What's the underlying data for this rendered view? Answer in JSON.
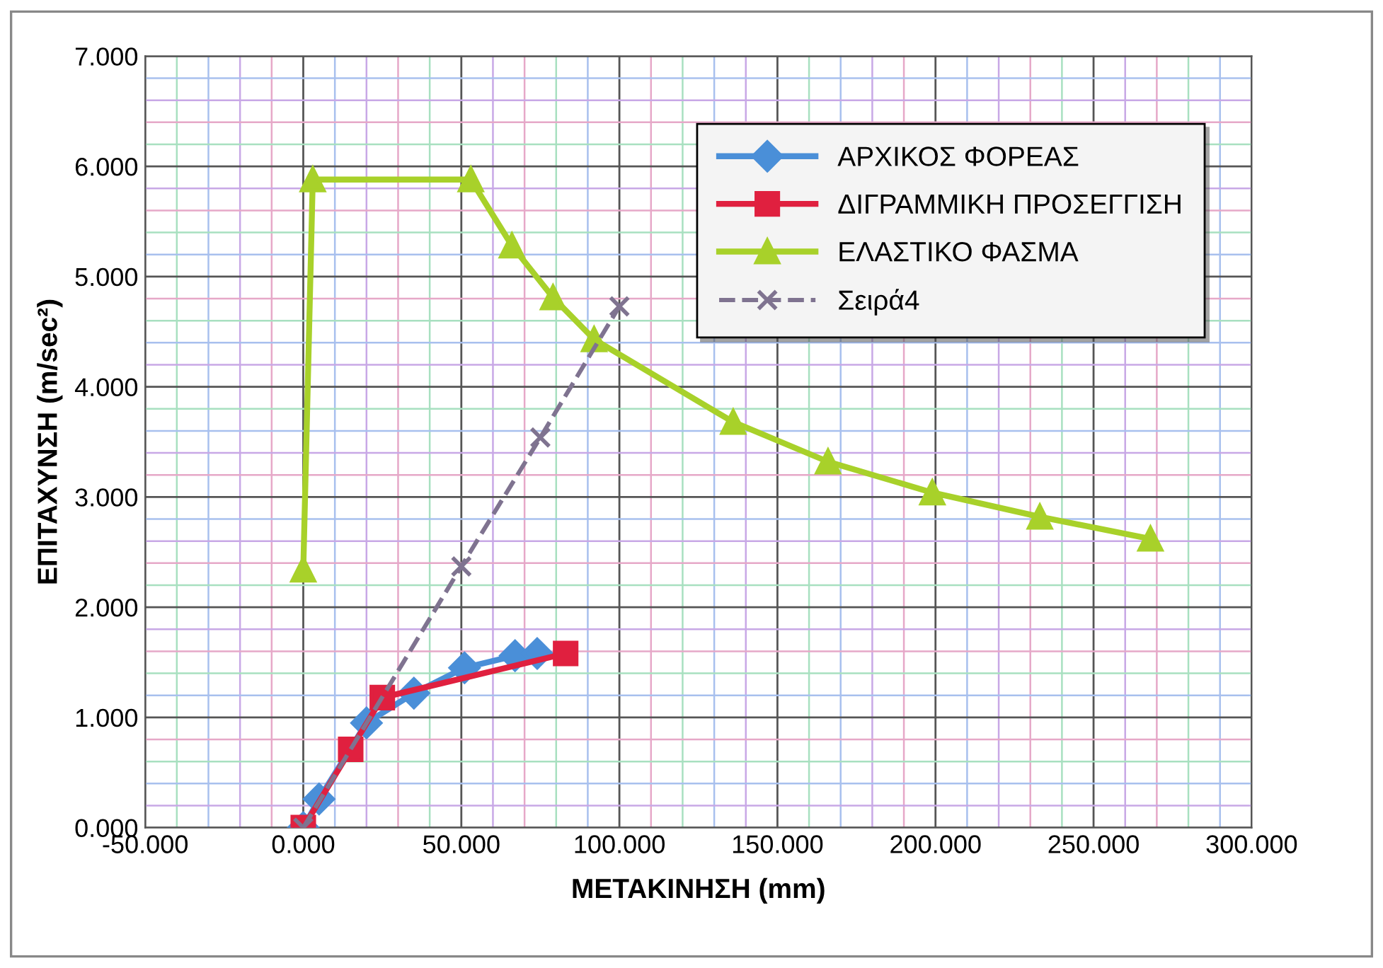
{
  "chart_data": {
    "type": "line",
    "xlabel": "ΜΕΤΑΚΙΝΗΣΗ (mm)",
    "ylabel": "ΕΠΙΤΑΧΥΝΣΗ (m/sec²)",
    "xlim": [
      -50,
      300
    ],
    "ylim": [
      0,
      7
    ],
    "xticks": [
      {
        "value": -50,
        "label": "-50.000"
      },
      {
        "value": -40,
        "label": null
      },
      {
        "value": -30,
        "label": null
      },
      {
        "value": -20,
        "label": null
      },
      {
        "value": -10,
        "label": null
      },
      {
        "value": 0,
        "label": "0.000"
      },
      {
        "value": 10,
        "label": null
      },
      {
        "value": 20,
        "label": null
      },
      {
        "value": 30,
        "label": null
      },
      {
        "value": 40,
        "label": null
      },
      {
        "value": 50,
        "label": "50.000"
      },
      {
        "value": 60,
        "label": null
      },
      {
        "value": 70,
        "label": null
      },
      {
        "value": 80,
        "label": null
      },
      {
        "value": 90,
        "label": null
      },
      {
        "value": 100,
        "label": "100.000"
      },
      {
        "value": 110,
        "label": null
      },
      {
        "value": 120,
        "label": null
      },
      {
        "value": 130,
        "label": null
      },
      {
        "value": 140,
        "label": null
      },
      {
        "value": 150,
        "label": "150.000"
      },
      {
        "value": 160,
        "label": null
      },
      {
        "value": 170,
        "label": null
      },
      {
        "value": 180,
        "label": null
      },
      {
        "value": 190,
        "label": null
      },
      {
        "value": 200,
        "label": "200.000"
      },
      {
        "value": 210,
        "label": null
      },
      {
        "value": 220,
        "label": null
      },
      {
        "value": 230,
        "label": null
      },
      {
        "value": 240,
        "label": null
      },
      {
        "value": 250,
        "label": "250.000"
      },
      {
        "value": 260,
        "label": null
      },
      {
        "value": 270,
        "label": null
      },
      {
        "value": 280,
        "label": null
      },
      {
        "value": 290,
        "label": null
      },
      {
        "value": 300,
        "label": "300.000"
      }
    ],
    "yticks": [
      {
        "value": 0,
        "label": "0.000"
      },
      {
        "value": 0.2,
        "label": null
      },
      {
        "value": 0.4,
        "label": null
      },
      {
        "value": 0.6,
        "label": null
      },
      {
        "value": 0.8,
        "label": null
      },
      {
        "value": 1,
        "label": "1.000"
      },
      {
        "value": 1.2,
        "label": null
      },
      {
        "value": 1.4,
        "label": null
      },
      {
        "value": 1.6,
        "label": null
      },
      {
        "value": 1.8,
        "label": null
      },
      {
        "value": 2,
        "label": "2.000"
      },
      {
        "value": 2.2,
        "label": null
      },
      {
        "value": 2.4,
        "label": null
      },
      {
        "value": 2.6,
        "label": null
      },
      {
        "value": 2.8,
        "label": null
      },
      {
        "value": 3,
        "label": "3.000"
      },
      {
        "value": 3.2,
        "label": null
      },
      {
        "value": 3.4,
        "label": null
      },
      {
        "value": 3.6,
        "label": null
      },
      {
        "value": 3.8,
        "label": null
      },
      {
        "value": 4,
        "label": "4.000"
      },
      {
        "value": 4.2,
        "label": null
      },
      {
        "value": 4.4,
        "label": null
      },
      {
        "value": 4.6,
        "label": null
      },
      {
        "value": 4.8,
        "label": null
      },
      {
        "value": 5,
        "label": "5.000"
      },
      {
        "value": 5.2,
        "label": null
      },
      {
        "value": 5.4,
        "label": null
      },
      {
        "value": 5.6,
        "label": null
      },
      {
        "value": 5.8,
        "label": null
      },
      {
        "value": 6,
        "label": "6.000"
      },
      {
        "value": 6.2,
        "label": null
      },
      {
        "value": 6.4,
        "label": null
      },
      {
        "value": 6.6,
        "label": null
      },
      {
        "value": 6.8,
        "label": null
      },
      {
        "value": 7,
        "label": "7.000"
      }
    ],
    "grid": true,
    "legend": "top right",
    "series": [
      {
        "name": "ΑΡΧΙΚΟΣ ΦΟΡΕΑΣ",
        "color": "#4a8fd8",
        "marker": "diamond",
        "x": [
          0,
          5,
          20,
          35,
          51,
          67,
          74
        ],
        "values": [
          0,
          0.26,
          0.95,
          1.22,
          1.45,
          1.56,
          1.58
        ]
      },
      {
        "name": "ΔΙΓΡΑΜΜΙΚΗ ΠΡΟΣΕΓΓΙΣΗ",
        "color": "#e0203f",
        "marker": "square",
        "x": [
          0,
          15,
          25,
          83
        ],
        "values": [
          0,
          0.71,
          1.18,
          1.58
        ]
      },
      {
        "name": "ΕΛΑΣΤΙΚΟ ΦΑΣΜΑ",
        "color": "#a8d12a",
        "marker": "triangle",
        "x": [
          0,
          3,
          53,
          66,
          79,
          92,
          136,
          166,
          199,
          233,
          268
        ],
        "values": [
          2.34,
          5.88,
          5.88,
          5.28,
          4.81,
          4.43,
          3.68,
          3.32,
          3.04,
          2.82,
          2.62
        ]
      },
      {
        "name": "Σειρά4",
        "color": "#7f7390",
        "marker": "cross",
        "line_style": "dashed",
        "x": [
          0,
          50,
          75,
          100
        ],
        "values": [
          0,
          2.37,
          3.54,
          4.73
        ]
      }
    ]
  }
}
